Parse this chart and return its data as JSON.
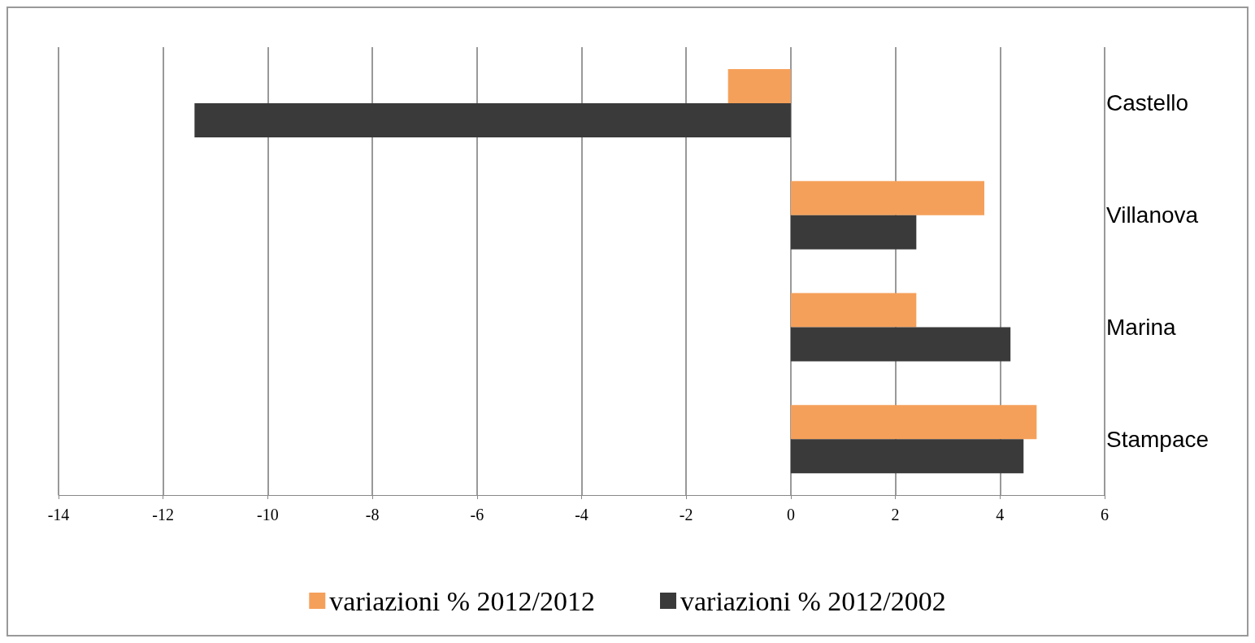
{
  "chart_data": {
    "type": "bar",
    "orientation": "horizontal",
    "categories": [
      "Castello",
      "Villanova",
      "Marina",
      "Stampace"
    ],
    "series": [
      {
        "name": "variazioni % 2012/2012",
        "color": "#f5a05a",
        "values": [
          -1.2,
          3.7,
          2.4,
          4.7
        ]
      },
      {
        "name": "variazioni % 2012/2002",
        "color": "#3a3a3a",
        "values": [
          -11.4,
          2.4,
          4.2,
          4.45
        ]
      }
    ],
    "xlim": [
      -14,
      6
    ],
    "xticks": [
      -14,
      -12,
      -10,
      -8,
      -6,
      -4,
      -2,
      0,
      2,
      4,
      6
    ],
    "grid": "x",
    "legend": "bottom"
  }
}
